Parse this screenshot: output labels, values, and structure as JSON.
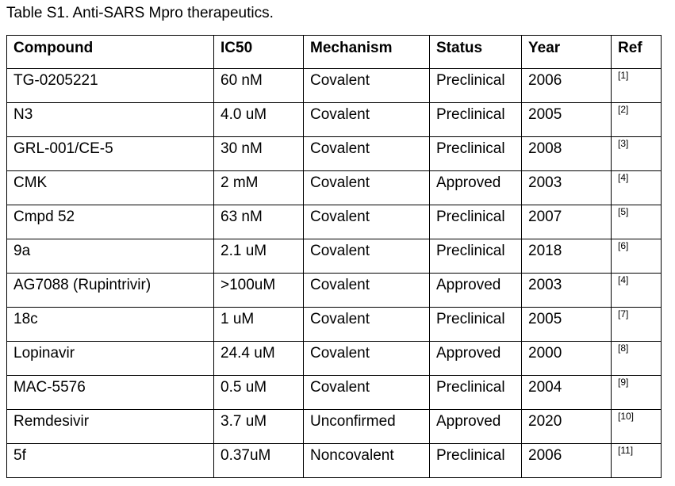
{
  "caption": "Table S1. Anti-SARS Mpro therapeutics.",
  "table": {
    "headers": [
      "Compound",
      "IC50",
      "Mechanism",
      "Status",
      "Year",
      "Ref"
    ],
    "rows": [
      [
        "TG-0205221",
        "60 nM",
        "Covalent",
        "Preclinical",
        "2006",
        "[1]"
      ],
      [
        "N3",
        "4.0 uM",
        "Covalent",
        "Preclinical",
        "2005",
        "[2]"
      ],
      [
        "GRL-001/CE-5",
        "30 nM",
        "Covalent",
        "Preclinical",
        "2008",
        "[3]"
      ],
      [
        "CMK",
        "2 mM",
        "Covalent",
        "Approved",
        "2003",
        "[4]"
      ],
      [
        "Cmpd 52",
        "63 nM",
        "Covalent",
        "Preclinical",
        "2007",
        "[5]"
      ],
      [
        "9a",
        "2.1 uM",
        "Covalent",
        "Preclinical",
        "2018",
        "[6]"
      ],
      [
        "AG7088 (Rupintrivir)",
        ">100uM",
        "Covalent",
        "Approved",
        "2003",
        "[4]"
      ],
      [
        "18c",
        "1 uM",
        "Covalent",
        "Preclinical",
        "2005",
        "[7]"
      ],
      [
        "Lopinavir",
        "24.4 uM",
        "Covalent",
        "Approved",
        "2000",
        "[8]"
      ],
      [
        "MAC-5576",
        "0.5 uM",
        "Covalent",
        "Preclinical",
        "2004",
        "[9]"
      ],
      [
        "Remdesivir",
        "3.7 uM",
        "Unconfirmed",
        "Approved",
        "2020",
        "[10]"
      ],
      [
        "5f",
        "0.37uM",
        "Noncovalent",
        "Preclinical",
        "2006",
        "[11]"
      ]
    ]
  }
}
